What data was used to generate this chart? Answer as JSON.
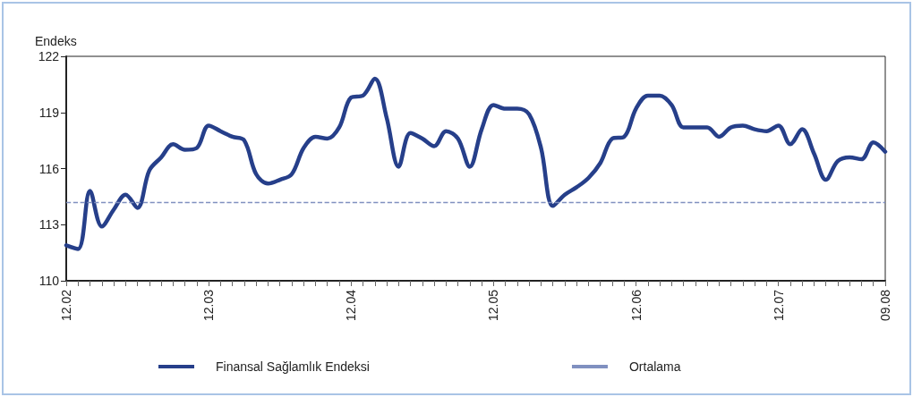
{
  "chart_data": {
    "type": "line",
    "ylabel": "Endeks",
    "categories": [
      "12.02",
      null,
      null,
      null,
      null,
      null,
      null,
      null,
      null,
      null,
      null,
      null,
      "12.03",
      null,
      null,
      null,
      null,
      null,
      null,
      null,
      null,
      null,
      null,
      null,
      "12.04",
      null,
      null,
      null,
      null,
      null,
      null,
      null,
      null,
      null,
      null,
      null,
      "12.05",
      null,
      null,
      null,
      null,
      null,
      null,
      null,
      null,
      null,
      null,
      null,
      "12.06",
      null,
      null,
      null,
      null,
      null,
      null,
      null,
      null,
      null,
      null,
      null,
      "12.07",
      null,
      null,
      null,
      null,
      null,
      null,
      null,
      null,
      "09.08"
    ],
    "series": [
      {
        "name": "Finansal Sağlamlık Endeksi",
        "color": "#263f8a",
        "values": [
          111.9,
          111.7,
          114.8,
          112.9,
          113.8,
          114.6,
          113.9,
          115.9,
          116.6,
          117.3,
          117.0,
          117.1,
          118.3,
          118.0,
          117.7,
          117.5,
          115.7,
          115.2,
          115.4,
          115.7,
          117.1,
          117.7,
          117.6,
          118.2,
          119.8,
          119.9,
          120.8,
          118.7,
          116.1,
          117.9,
          117.6,
          117.2,
          118.0,
          117.6,
          116.1,
          118.1,
          119.4,
          119.2,
          119.2,
          118.9,
          117.1,
          114.0,
          114.6,
          115.0,
          115.5,
          116.3,
          117.6,
          117.7,
          119.2,
          119.9,
          119.9,
          119.4,
          118.2,
          118.2,
          118.2,
          117.7,
          118.2,
          118.3,
          118.1,
          118.0,
          118.3,
          117.3,
          118.1,
          116.8,
          115.4,
          116.4,
          116.6,
          116.5,
          117.4,
          116.9
        ]
      }
    ],
    "ylim": [
      110,
      122
    ],
    "yticks": [
      110,
      113,
      116,
      119,
      122
    ],
    "grid": false,
    "legend": "bottom",
    "marker": "none",
    "line_style": "solid",
    "ref_lines": [
      {
        "axis": "y",
        "value": 114.2,
        "label": "Ortalama",
        "color": "#8090c0",
        "line_style": "dashed"
      }
    ]
  }
}
